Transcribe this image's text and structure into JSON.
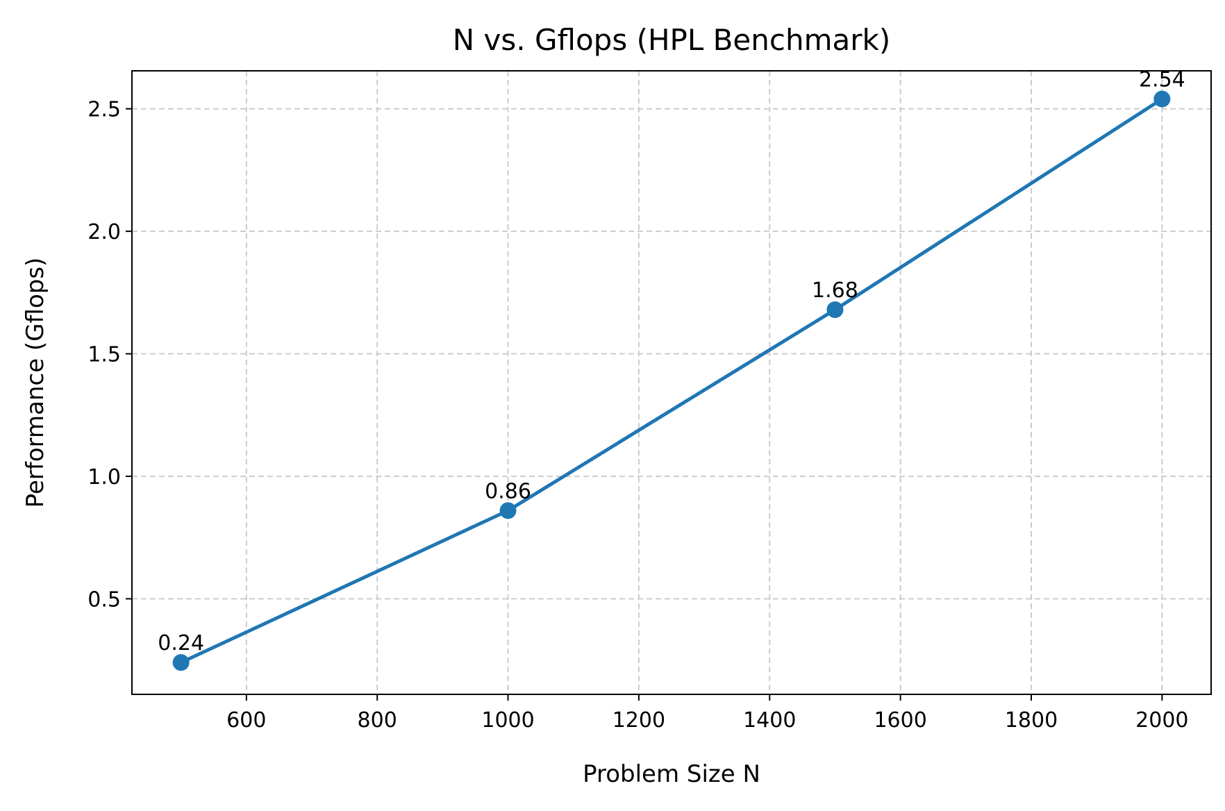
{
  "chart_data": {
    "type": "line",
    "title": "N vs. Gflops (HPL Benchmark)",
    "xlabel": "Problem Size N",
    "ylabel": "Performance (Gflops)",
    "xlim": [
      425,
      2075
    ],
    "ylim": [
      0.11,
      2.655
    ],
    "xticks": [
      600,
      800,
      1000,
      1200,
      1400,
      1600,
      1800,
      2000
    ],
    "xtick_labels": [
      "600",
      "800",
      "1000",
      "1200",
      "1400",
      "1600",
      "1800",
      "2000"
    ],
    "yticks": [
      0.5,
      1.0,
      1.5,
      2.0,
      2.5
    ],
    "ytick_labels": [
      "0.5",
      "1.0",
      "1.5",
      "2.0",
      "2.5"
    ],
    "grid": true,
    "grid_style": "dashed",
    "legend": "none",
    "series": [
      {
        "color": "#1f77b4",
        "marker": "circle",
        "x": [
          500,
          1000,
          1500,
          2000
        ],
        "y": [
          0.24,
          0.86,
          1.68,
          2.54
        ],
        "data_labels": [
          "0.24",
          "0.86",
          "1.68",
          "2.54"
        ]
      }
    ]
  }
}
